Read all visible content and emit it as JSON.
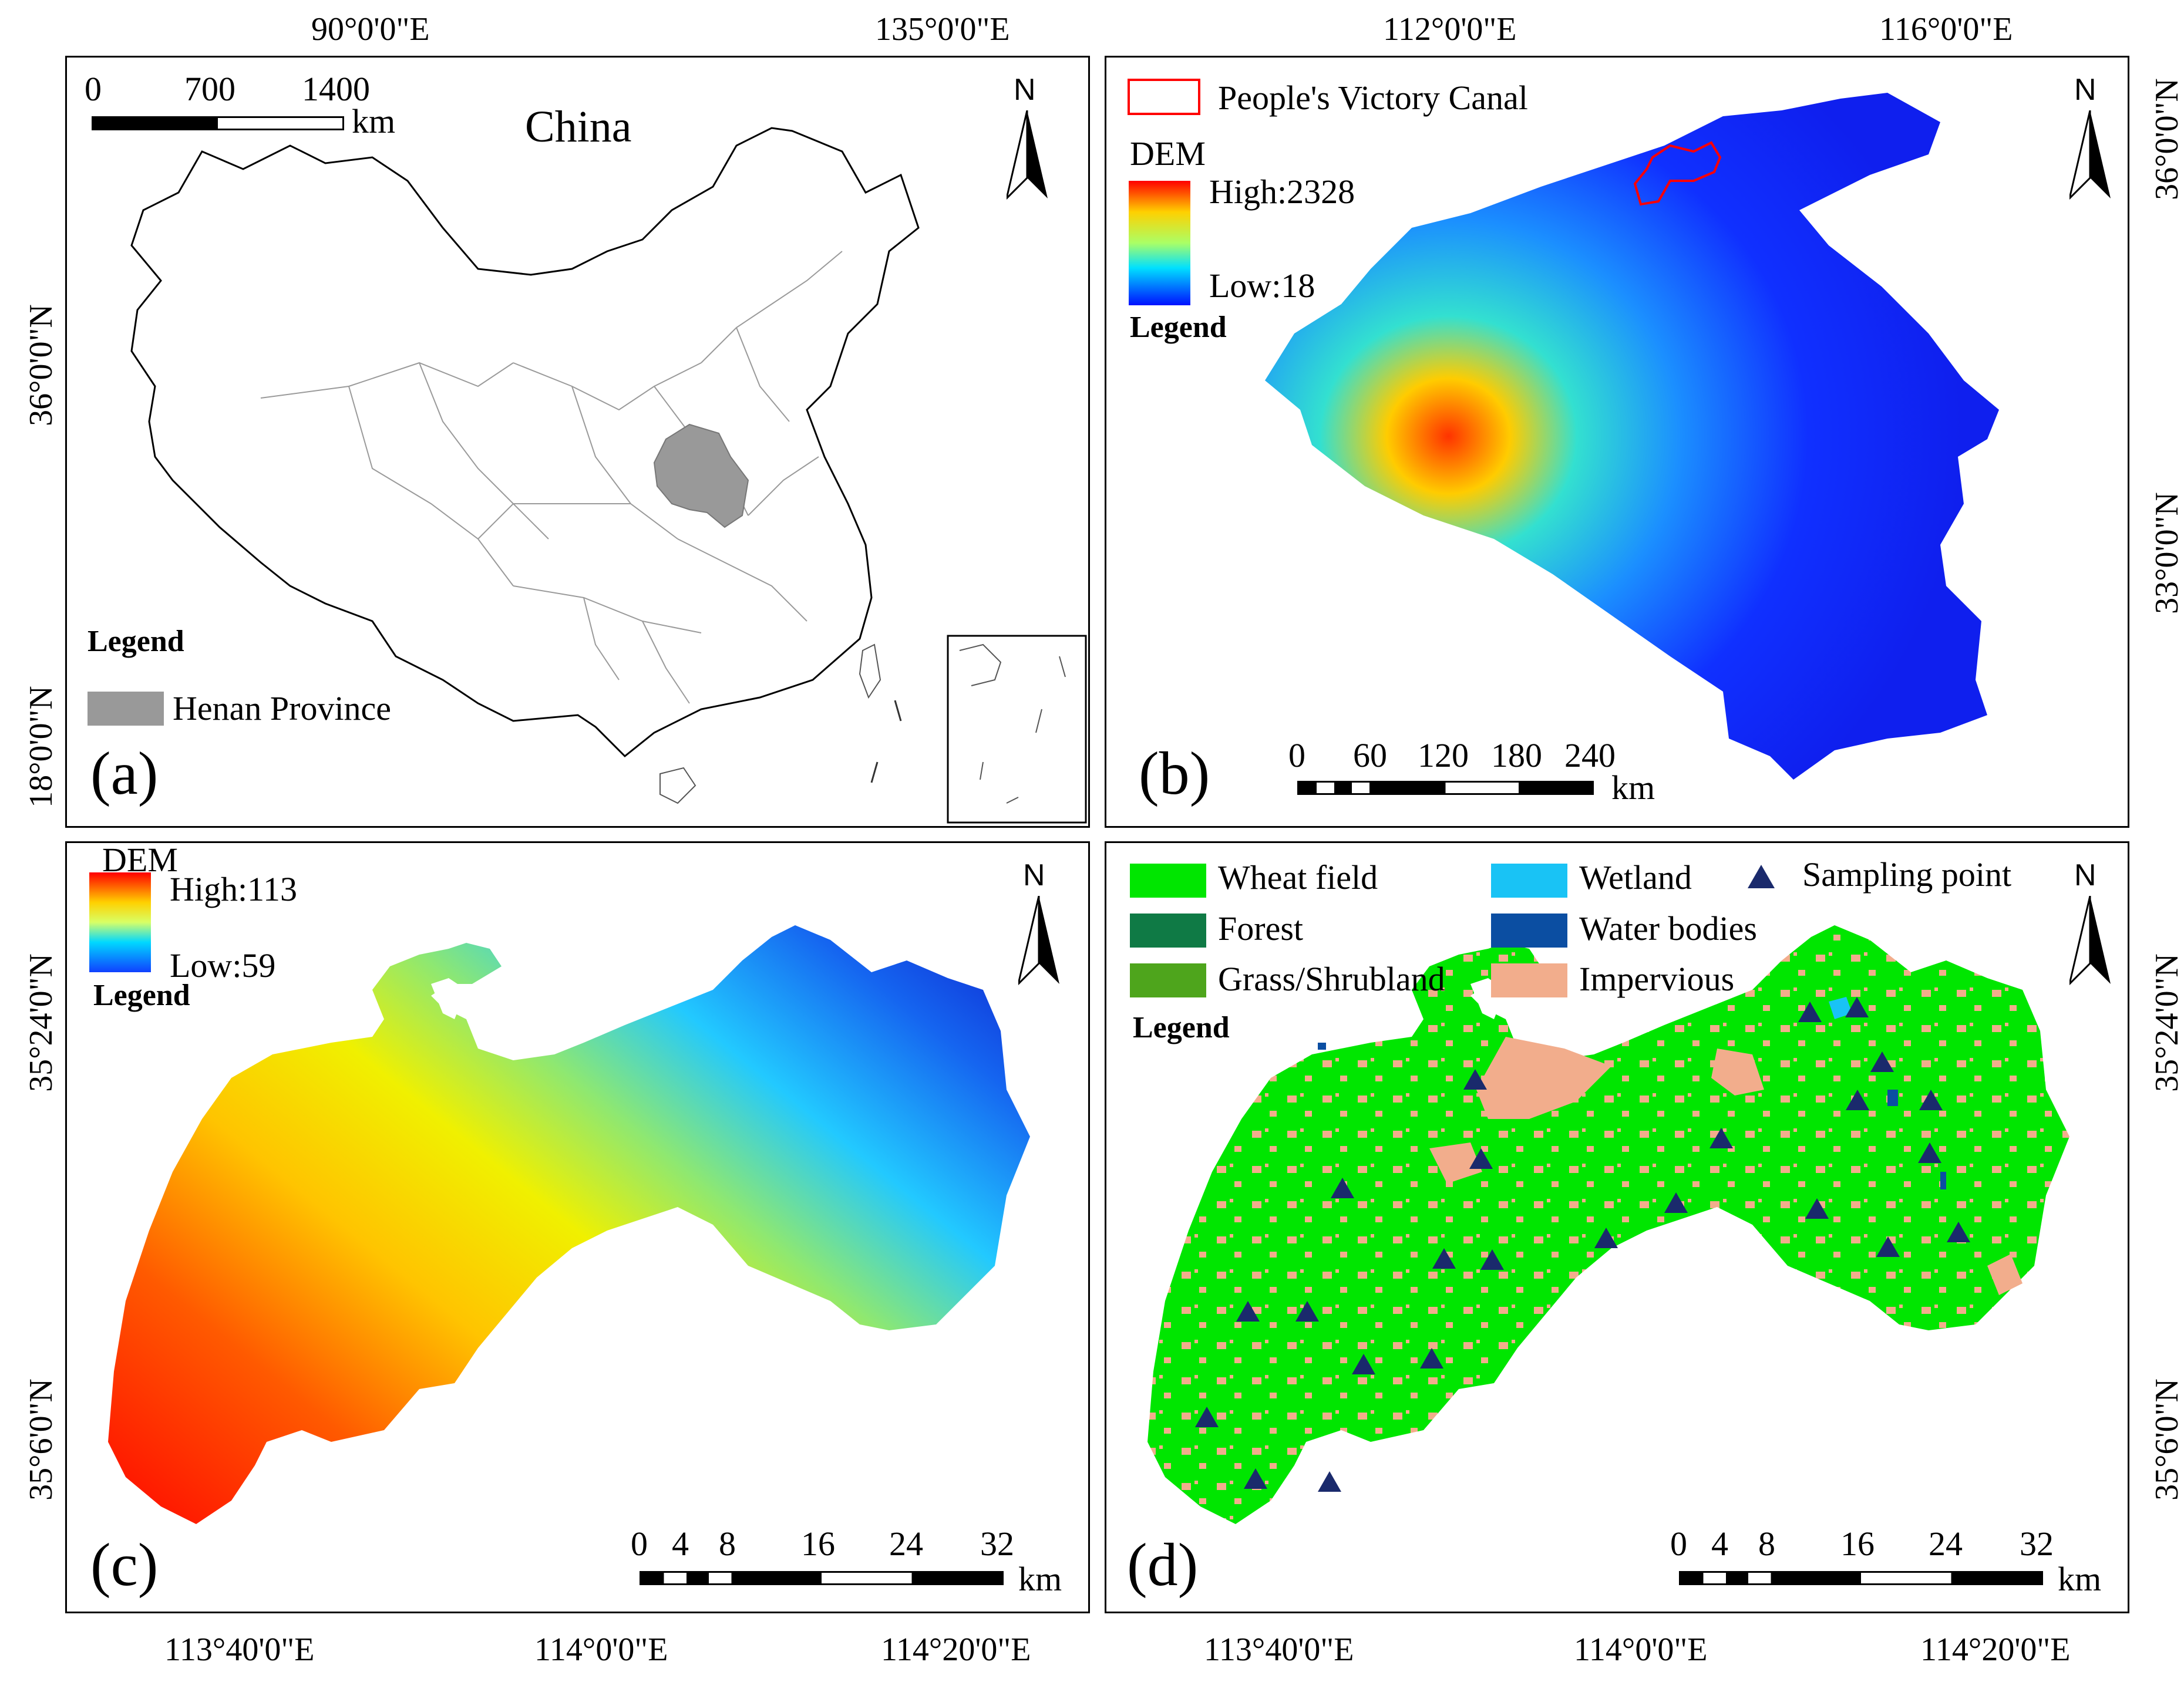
{
  "coords": {
    "top": [
      "90°0'0\"E",
      "135°0'0\"E",
      "112°0'0\"E",
      "116°0'0\"E"
    ],
    "bottom": [
      "113°40'0\"E",
      "114°0'0\"E",
      "114°20'0\"E",
      "113°40'0\"E",
      "114°0'0\"E",
      "114°20'0\"E"
    ],
    "left": [
      "36°0'0\"N",
      "18°0'0\"N",
      "35°24'0\"N",
      "35°6'0\"N"
    ],
    "right": [
      "36°0'0\"N",
      "33°0'0\"N",
      "35°24'0\"N",
      "35°6'0\"N"
    ]
  },
  "panel_a": {
    "label": "(a)",
    "title": "China",
    "scale": {
      "ticks": [
        "0",
        "700",
        "1400"
      ],
      "unit": "km"
    },
    "north": "N",
    "legend_title": "Legend",
    "legend_item": "Henan Province",
    "colors": {
      "province": "#999999",
      "border": "#000000",
      "internal": "#9a9a9a"
    }
  },
  "panel_b": {
    "label": "(b)",
    "north": "N",
    "canal_label": "People's Victory Canal",
    "dem_title": "DEM",
    "dem_high": "High:2328",
    "dem_low": "Low:18",
    "legend_title": "Legend",
    "scale": {
      "ticks": [
        "0",
        "60",
        "120",
        "180",
        "240"
      ],
      "unit": "km"
    },
    "colors": {
      "canal": "#ff0000",
      "low": "#1020ff",
      "mid": "#00e0ff",
      "high": "#ff0000"
    }
  },
  "panel_c": {
    "label": "(c)",
    "north": "N",
    "dem_title": "DEM",
    "dem_high": "High:113",
    "dem_low": "Low:59",
    "legend_title": "Legend",
    "scale": {
      "ticks": [
        "0",
        "4",
        "8",
        "16",
        "24",
        "32"
      ],
      "unit": "km"
    }
  },
  "panel_d": {
    "label": "(d)",
    "north": "N",
    "legend_title": "Legend",
    "legend": [
      {
        "label": "Wheat field",
        "color": "#00e600"
      },
      {
        "label": "Forest",
        "color": "#0f7a45"
      },
      {
        "label": "Grass/Shrubland",
        "color": "#4ea51c"
      },
      {
        "label": "Wetland",
        "color": "#19c3f5"
      },
      {
        "label": "Water bodies",
        "color": "#0b4ea2"
      },
      {
        "label": "Impervious",
        "color": "#f2ad8c"
      }
    ],
    "sampling_label": "Sampling point",
    "sampling_color": "#1a2a6c",
    "scale": {
      "ticks": [
        "0",
        "4",
        "8",
        "16",
        "24",
        "32"
      ],
      "unit": "km"
    }
  }
}
